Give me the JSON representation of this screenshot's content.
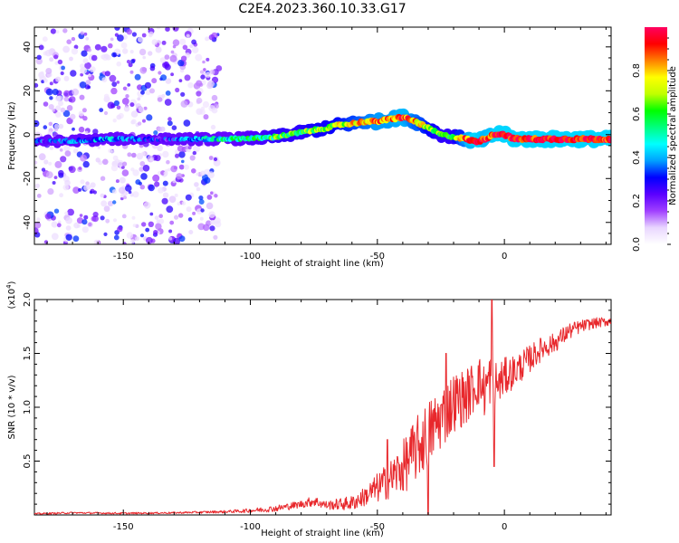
{
  "title": "C2E4.2023.360.10.33.G17",
  "chart_data": [
    {
      "type": "heatmap",
      "name": "spectrogram",
      "xlabel": "Height of straight line (km)",
      "ylabel": "Frequency (Hz)",
      "xlim": [
        -185,
        42
      ],
      "ylim": [
        -50,
        49
      ],
      "x_ticks": [
        -150,
        -100,
        -50,
        0
      ],
      "x_tick_labels": [
        "-150",
        "-100",
        "-50",
        "0"
      ],
      "y_ticks": [
        -40,
        -20,
        0,
        20,
        40
      ],
      "y_tick_labels": [
        "-40",
        "-20",
        "0",
        "20",
        "40"
      ],
      "colorbar": {
        "label": "Normalized spectral amplitude",
        "range": [
          0,
          1
        ],
        "ticks": [
          0.0,
          0.2,
          0.4,
          0.6,
          0.8
        ],
        "tick_labels": [
          "0.0",
          "0.2",
          "0.4",
          "0.6",
          "0.8"
        ],
        "colors": [
          "#ffffff",
          "#e9d6ff",
          "#a040ff",
          "#5a00ff",
          "#0000ff",
          "#00a0ff",
          "#00ffff",
          "#00ff80",
          "#00ff00",
          "#c0ff00",
          "#ffff00",
          "#ff8000",
          "#ff0000",
          "#ff0060"
        ]
      },
      "ridge": {
        "x": [
          -185,
          -175,
          -165,
          -155,
          -145,
          -135,
          -125,
          -115,
          -105,
          -95,
          -90,
          -85,
          -80,
          -75,
          -70,
          -65,
          -60,
          -55,
          -50,
          -45,
          -40,
          -35,
          -30,
          -25,
          -20,
          -15,
          -12,
          -10,
          -8,
          -6,
          -4,
          -2,
          0,
          2,
          4,
          6,
          10,
          20,
          30,
          42
        ],
        "frequency": [
          -3,
          -3,
          -2.5,
          -2,
          -2,
          -2,
          -2,
          -2,
          -1.8,
          -1.5,
          -1,
          0,
          1,
          2,
          3,
          4.5,
          5,
          6,
          6,
          7,
          8,
          6,
          3,
          0,
          -1,
          -2,
          -3,
          -3,
          -2,
          -1,
          0,
          0.5,
          0,
          -1,
          -2,
          -2,
          -2,
          -2,
          -2,
          -2
        ],
        "amplitude": [
          0.3,
          0.3,
          0.35,
          0.4,
          0.3,
          0.25,
          0.35,
          0.45,
          0.5,
          0.55,
          0.6,
          0.6,
          0.6,
          0.65,
          0.65,
          0.7,
          0.75,
          0.8,
          0.85,
          0.85,
          0.9,
          0.8,
          0.7,
          0.6,
          0.6,
          0.85,
          0.95,
          0.95,
          0.9,
          0.9,
          0.95,
          0.95,
          0.95,
          0.95,
          0.95,
          0.95,
          0.95,
          0.95,
          0.95,
          0.95
        ]
      },
      "noise_region": {
        "x_from": -185,
        "x_to": -112,
        "max_amplitude": 0.3
      }
    },
    {
      "type": "line",
      "name": "snr",
      "xlabel": "Height of straight line (km)",
      "ylabel": "SNR (10 * v/v)",
      "y_multiplier_label": "(x10",
      "y_multiplier_exponent": "4",
      "y_multiplier_close": ")",
      "xlim": [
        -185,
        42
      ],
      "ylim": [
        0,
        20000
      ],
      "x_ticks": [
        -150,
        -100,
        -50,
        0
      ],
      "x_tick_labels": [
        "-150",
        "-100",
        "-50",
        "0"
      ],
      "y_ticks": [
        5000,
        10000,
        15000,
        20000
      ],
      "y_tick_labels": [
        "0.5",
        "1.0",
        "1.5",
        "2.0"
      ],
      "color": "#e8282c",
      "x": [
        -185,
        -170,
        -150,
        -130,
        -110,
        -100,
        -90,
        -80,
        -75,
        -70,
        -60,
        -55,
        -50,
        -45,
        -40,
        -35,
        -30,
        -25,
        -20,
        -15,
        -10,
        -8,
        -5,
        -3,
        0,
        5,
        10,
        15,
        20,
        25,
        30,
        35,
        42
      ],
      "y": [
        100,
        200,
        150,
        200,
        300,
        400,
        600,
        1000,
        1300,
        900,
        1100,
        1700,
        2500,
        3300,
        4400,
        6000,
        7500,
        9000,
        10500,
        11000,
        12500,
        11500,
        13000,
        12000,
        12800,
        13500,
        14500,
        15500,
        16000,
        17000,
        17500,
        17800,
        18000
      ],
      "spread": [
        80,
        80,
        80,
        80,
        120,
        200,
        300,
        350,
        500,
        400,
        700,
        900,
        1400,
        1800,
        2500,
        3000,
        3200,
        3000,
        2800,
        2600,
        2400,
        2600,
        2500,
        2200,
        1800,
        1500,
        1300,
        1100,
        900,
        800,
        600,
        500,
        400
      ],
      "spikes": [
        {
          "x": -5,
          "y": 20000
        },
        {
          "x": -4,
          "y": 4500
        },
        {
          "x": -30,
          "y": 0
        },
        {
          "x": -23,
          "y": 15000
        },
        {
          "x": -46,
          "y": 7000
        }
      ]
    }
  ]
}
